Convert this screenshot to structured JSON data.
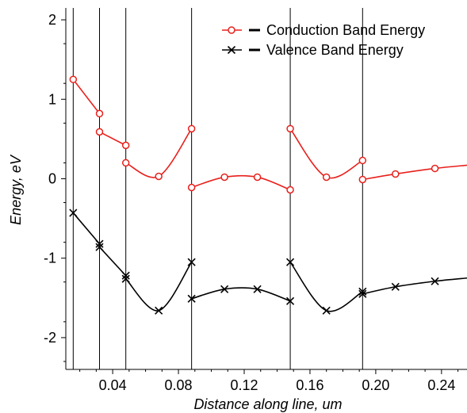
{
  "chart_data": {
    "type": "line",
    "xlabel": "Distance along line, um",
    "ylabel": "Energy, eV",
    "xlim": [
      0.0115,
      0.2555
    ],
    "ylim": [
      -2.4,
      2.15
    ],
    "x_ticks": [
      0.04,
      0.08,
      0.12,
      0.16,
      0.2,
      0.24
    ],
    "x_tick_labels": [
      "0.04",
      "0.08",
      "0.12",
      "0.16",
      "0.20",
      "0.24"
    ],
    "y_ticks": [
      2,
      1,
      0,
      -1,
      -2
    ],
    "y_tick_labels": [
      "2",
      "1",
      "0",
      "-1",
      "-2"
    ],
    "vertical_lines": [
      0.016,
      0.032,
      0.048,
      0.088,
      0.148,
      0.192
    ],
    "legend_position": "top-right",
    "series": [
      {
        "name": "Conduction Band Energy",
        "color": "#e8201c",
        "marker": "circle",
        "segments": [
          [
            [
              0.016,
              1.25
            ],
            [
              0.032,
              0.82
            ]
          ],
          [
            [
              0.032,
              0.59
            ],
            [
              0.048,
              0.42
            ]
          ],
          [
            [
              0.048,
              0.2
            ],
            [
              0.068,
              0.03
            ],
            [
              0.088,
              0.63
            ]
          ],
          [
            [
              0.088,
              -0.11
            ],
            [
              0.108,
              0.02
            ],
            [
              0.128,
              0.02
            ],
            [
              0.148,
              -0.14
            ]
          ],
          [
            [
              0.148,
              0.63
            ],
            [
              0.17,
              0.02
            ],
            [
              0.192,
              0.23
            ]
          ],
          [
            [
              0.192,
              -0.01
            ],
            [
              0.212,
              0.06
            ],
            [
              0.236,
              0.13
            ],
            [
              0.2555,
              0.17
            ]
          ]
        ]
      },
      {
        "name": "Valence Band Energy",
        "color": "#000000",
        "marker": "x",
        "segments": [
          [
            [
              0.016,
              -0.43
            ],
            [
              0.032,
              -0.82
            ]
          ],
          [
            [
              0.032,
              -0.86
            ],
            [
              0.048,
              -1.22
            ]
          ],
          [
            [
              0.048,
              -1.26
            ],
            [
              0.068,
              -1.66
            ],
            [
              0.088,
              -1.05
            ]
          ],
          [
            [
              0.088,
              -1.51
            ],
            [
              0.108,
              -1.39
            ],
            [
              0.128,
              -1.39
            ],
            [
              0.148,
              -1.54
            ]
          ],
          [
            [
              0.148,
              -1.05
            ],
            [
              0.17,
              -1.66
            ],
            [
              0.192,
              -1.42
            ]
          ],
          [
            [
              0.192,
              -1.45
            ],
            [
              0.212,
              -1.36
            ],
            [
              0.236,
              -1.29
            ],
            [
              0.2555,
              -1.25
            ]
          ]
        ]
      }
    ]
  }
}
